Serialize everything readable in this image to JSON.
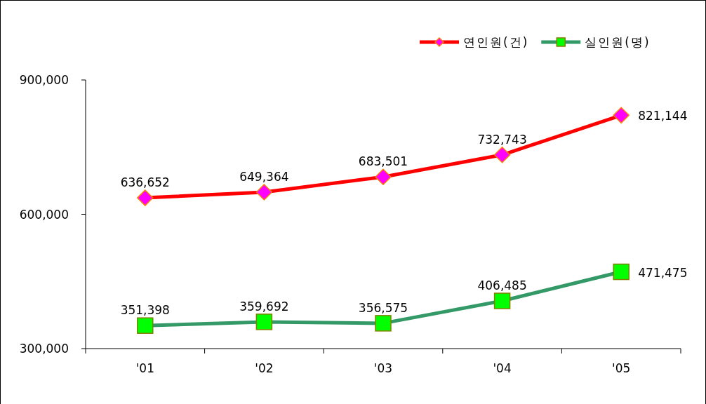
{
  "chart_data": {
    "type": "line",
    "categories": [
      "'01",
      "'02",
      "'03",
      "'04",
      "'05"
    ],
    "series": [
      {
        "name": "연인원(건)",
        "color": "#ff0000",
        "marker": "diamond",
        "values": [
          636652,
          649364,
          683501,
          732743,
          821144
        ],
        "value_labels": [
          "636,652",
          "649,364",
          "683,501",
          "732,743",
          "821,144"
        ]
      },
      {
        "name": "실인원(명)",
        "color": "#339966",
        "marker": "square",
        "values": [
          351398,
          359692,
          356575,
          406485,
          471475
        ],
        "value_labels": [
          "351,398",
          "359,692",
          "356,575",
          "406,485",
          "471,475"
        ]
      }
    ],
    "ylim": [
      300000,
      900000
    ],
    "yticks": [
      {
        "value": 300000,
        "label": "300,000"
      },
      {
        "value": 600000,
        "label": "600,000"
      },
      {
        "value": 900000,
        "label": "900,000"
      }
    ],
    "grid": false,
    "legend": "top right"
  }
}
